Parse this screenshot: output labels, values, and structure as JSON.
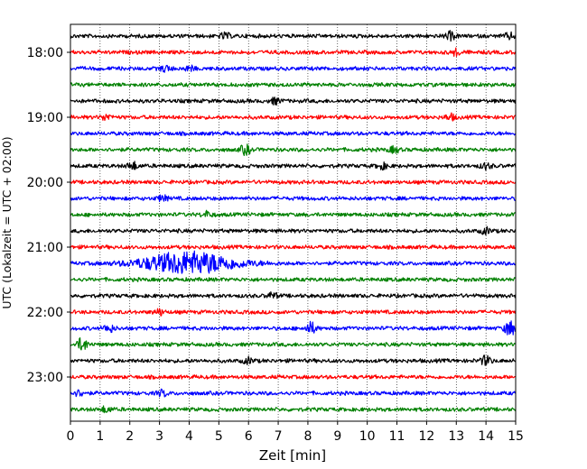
{
  "chart_data": {
    "type": "line",
    "xlabel": "Zeit  [min]",
    "ylabel": "UTC (Lokalzeit = UTC + 02:00)",
    "xlim": [
      0,
      15
    ],
    "x_ticks": [
      0,
      1,
      2,
      3,
      4,
      5,
      6,
      7,
      8,
      9,
      10,
      11,
      12,
      13,
      14,
      15
    ],
    "y_tick_labels": [
      "18:00",
      "19:00",
      "20:00",
      "21:00",
      "22:00",
      "23:00"
    ],
    "grid": "vertical dotted at each minute",
    "trace_count": 24,
    "trace_start_times": [
      "17:45",
      "18:00",
      "18:15",
      "18:30",
      "18:45",
      "19:00",
      "19:15",
      "19:30",
      "19:45",
      "20:00",
      "20:15",
      "20:30",
      "20:45",
      "21:00",
      "21:15",
      "21:30",
      "21:45",
      "22:00",
      "22:15",
      "22:30",
      "22:45",
      "23:00",
      "23:15",
      "23:30"
    ],
    "trace_minutes": 15,
    "colors": [
      "#000000",
      "#ff0000",
      "#0000ff",
      "#008000"
    ],
    "events": [
      {
        "trace": 1,
        "minute": 5.2,
        "amplitude": 3
      },
      {
        "trace": 1,
        "minute": 12.8,
        "amplitude": 4
      },
      {
        "trace": 1,
        "minute": 14.8,
        "amplitude": 3
      },
      {
        "trace": 2,
        "minute": 13.0,
        "amplitude": 3
      },
      {
        "trace": 3,
        "minute": 3.2,
        "amplitude": 3
      },
      {
        "trace": 3,
        "minute": 4.0,
        "amplitude": 2.5
      },
      {
        "trace": 5,
        "minute": 6.9,
        "amplitude": 3
      },
      {
        "trace": 6,
        "minute": 1.2,
        "amplitude": 3
      },
      {
        "trace": 6,
        "minute": 12.8,
        "amplitude": 3
      },
      {
        "trace": 8,
        "minute": 5.9,
        "amplitude": 5
      },
      {
        "trace": 8,
        "minute": 10.9,
        "amplitude": 3
      },
      {
        "trace": 9,
        "minute": 2.1,
        "amplitude": 4
      },
      {
        "trace": 9,
        "minute": 10.5,
        "amplitude": 3
      },
      {
        "trace": 9,
        "minute": 14.0,
        "amplitude": 3
      },
      {
        "trace": 11,
        "minute": 3.1,
        "amplitude": 3
      },
      {
        "trace": 12,
        "minute": 4.6,
        "amplitude": 3
      },
      {
        "trace": 13,
        "minute": 14.0,
        "amplitude": 3
      },
      {
        "trace": 15,
        "minute": 4.0,
        "amplitude": 12
      },
      {
        "trace": 17,
        "minute": 6.8,
        "amplitude": 3
      },
      {
        "trace": 18,
        "minute": 3.0,
        "amplitude": 3
      },
      {
        "trace": 19,
        "minute": 1.3,
        "amplitude": 4
      },
      {
        "trace": 19,
        "minute": 8.1,
        "amplitude": 6
      },
      {
        "trace": 19,
        "minute": 14.8,
        "amplitude": 8
      },
      {
        "trace": 20,
        "minute": 0.4,
        "amplitude": 7
      },
      {
        "trace": 21,
        "minute": 14.0,
        "amplitude": 5
      },
      {
        "trace": 21,
        "minute": 6.0,
        "amplitude": 3
      },
      {
        "trace": 23,
        "minute": 0.3,
        "amplitude": 3
      },
      {
        "trace": 23,
        "minute": 3.1,
        "amplitude": 3
      },
      {
        "trace": 24,
        "minute": 1.2,
        "amplitude": 3
      }
    ]
  }
}
